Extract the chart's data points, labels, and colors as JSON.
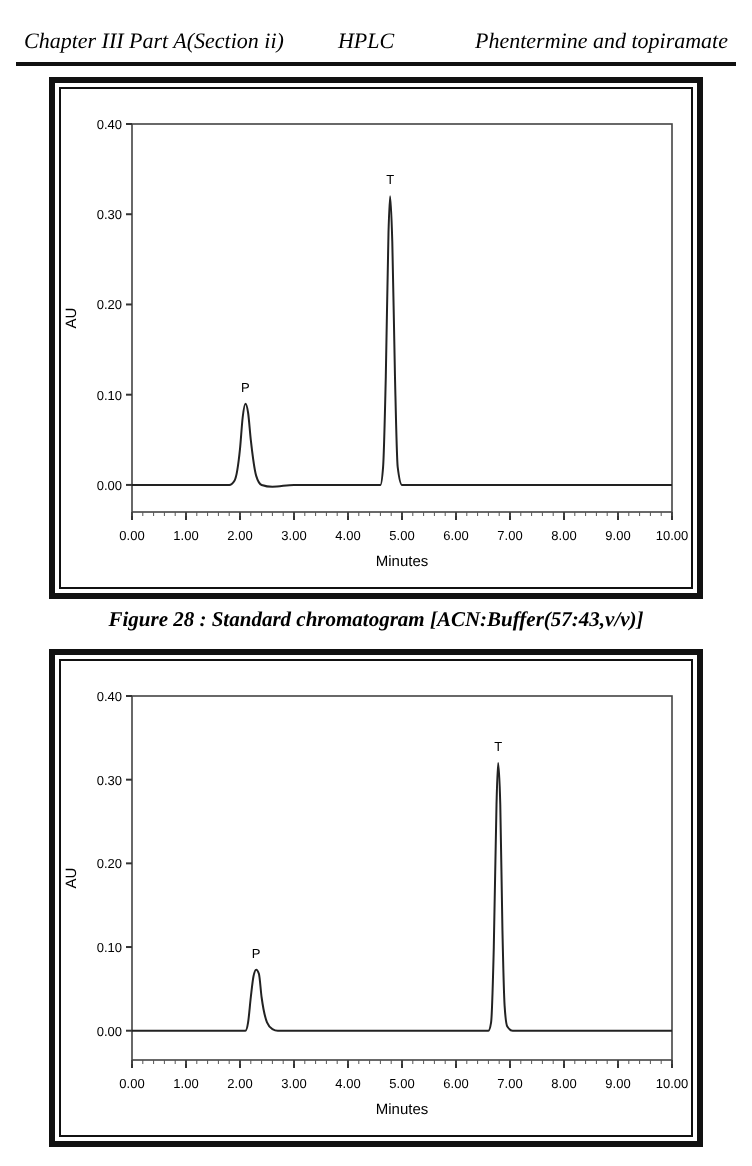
{
  "chart_data": [
    {
      "type": "line",
      "xlabel": "Minutes",
      "ylabel": "AU",
      "xlim": [
        0,
        10
      ],
      "ylim": [
        -0.03,
        0.4
      ],
      "xticks": [
        {
          "value": 0,
          "label": "0.00"
        },
        {
          "value": 1,
          "label": "1.00"
        },
        {
          "value": 2,
          "label": "2.00"
        },
        {
          "value": 3,
          "label": "3.00"
        },
        {
          "value": 4,
          "label": "4.00"
        },
        {
          "value": 5,
          "label": "5.00"
        },
        {
          "value": 6,
          "label": "6.00"
        },
        {
          "value": 7,
          "label": "7.00"
        },
        {
          "value": 8,
          "label": "8.00"
        },
        {
          "value": 9,
          "label": "9.00"
        },
        {
          "value": 10,
          "label": "10.00"
        }
      ],
      "yticks": [
        {
          "value": 0,
          "label": "0.00"
        },
        {
          "value": 0.1,
          "label": "0.10"
        },
        {
          "value": 0.2,
          "label": "0.20"
        },
        {
          "value": 0.3,
          "label": "0.30"
        },
        {
          "value": 0.4,
          "label": "0.40"
        }
      ],
      "series": [
        {
          "color": "#222222",
          "x": [
            0,
            1.8,
            1.9,
            2.0,
            2.05,
            2.1,
            2.15,
            2.2,
            2.3,
            2.4,
            2.6,
            3.0,
            4.5,
            4.6,
            4.65,
            4.7,
            4.75,
            4.78,
            4.82,
            4.87,
            4.92,
            5.0,
            5.5,
            10
          ],
          "values": [
            0,
            0,
            0.005,
            0.04,
            0.075,
            0.09,
            0.08,
            0.05,
            0.01,
            0,
            -0.002,
            0,
            0,
            0,
            0.02,
            0.12,
            0.28,
            0.32,
            0.27,
            0.12,
            0.02,
            0,
            0,
            0
          ]
        }
      ],
      "annotations": [
        "Chapter III Part A(Section ii)",
        "HPLC",
        "Phentermine and topiramate",
        {
          "text": "P",
          "x": 2.1,
          "y": 0.09
        },
        {
          "text": "T",
          "x": 4.78,
          "y": 0.32
        },
        "Figure 28  : Standard chromatogram [ACN:Buffer(57:43,v/v)]"
      ]
    },
    {
      "type": "line",
      "xlabel": "Minutes",
      "ylabel": "AU",
      "xlim": [
        0,
        10
      ],
      "ylim": [
        -0.035,
        0.4
      ],
      "xticks": [
        {
          "value": 0,
          "label": "0.00"
        },
        {
          "value": 1,
          "label": "1.00"
        },
        {
          "value": 2,
          "label": "2.00"
        },
        {
          "value": 3,
          "label": "3.00"
        },
        {
          "value": 4,
          "label": "4.00"
        },
        {
          "value": 5,
          "label": "5.00"
        },
        {
          "value": 6,
          "label": "6.00"
        },
        {
          "value": 7,
          "label": "7.00"
        },
        {
          "value": 8,
          "label": "8.00"
        },
        {
          "value": 9,
          "label": "9.00"
        },
        {
          "value": 10,
          "label": "10.00"
        }
      ],
      "yticks": [
        {
          "value": 0,
          "label": "0.00"
        },
        {
          "value": 0.1,
          "label": "0.10"
        },
        {
          "value": 0.2,
          "label": "0.20"
        },
        {
          "value": 0.3,
          "label": "0.30"
        },
        {
          "value": 0.4,
          "label": "0.40"
        }
      ],
      "series": [
        {
          "color": "#222222",
          "x": [
            0,
            2.1,
            2.15,
            2.2,
            2.25,
            2.3,
            2.35,
            2.4,
            2.5,
            2.6,
            2.7,
            6.5,
            6.6,
            6.65,
            6.7,
            6.75,
            6.78,
            6.82,
            6.86,
            6.9,
            6.95,
            7.05,
            10
          ],
          "values": [
            0,
            0,
            0.01,
            0.04,
            0.065,
            0.073,
            0.068,
            0.04,
            0.01,
            0.002,
            0,
            0,
            0,
            0.01,
            0.1,
            0.27,
            0.32,
            0.27,
            0.12,
            0.03,
            0.005,
            0,
            0
          ]
        }
      ],
      "annotations": [
        {
          "text": "P",
          "x": 2.3,
          "y": 0.073
        },
        {
          "text": "T",
          "x": 6.78,
          "y": 0.32
        }
      ]
    }
  ]
}
